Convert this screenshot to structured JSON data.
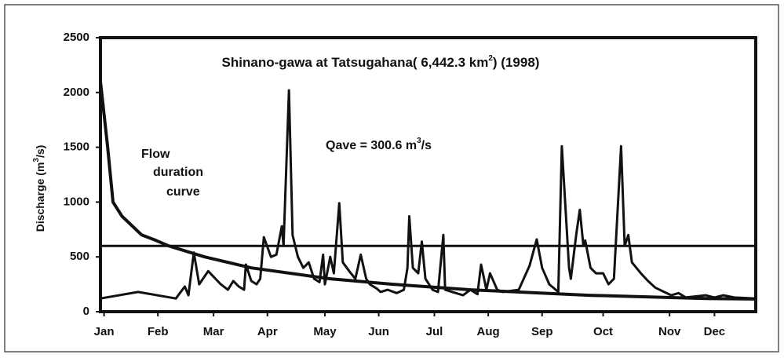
{
  "chart_data": {
    "type": "line",
    "title_parts": [
      "Shinano-gawa at Tatsugahana( 6,442.3 km",
      "2",
      ") (1998)"
    ],
    "ylabel_parts": [
      "Discharge (m",
      "3",
      "/s)"
    ],
    "annotations": {
      "qave": [
        "Qave = 300.6 m",
        "3",
        "/s"
      ],
      "duration": [
        "Flow",
        "duration",
        "curve"
      ]
    },
    "xlim": [
      0,
      365
    ],
    "ylim": [
      0,
      2500
    ],
    "yticks": [
      0,
      500,
      1000,
      1500,
      2000,
      2500
    ],
    "xticks": [
      {
        "value": 2,
        "label": "Jan"
      },
      {
        "value": 32,
        "label": "Feb"
      },
      {
        "value": 63,
        "label": "Mar"
      },
      {
        "value": 93,
        "label": "Apr"
      },
      {
        "value": 125,
        "label": "May"
      },
      {
        "value": 155,
        "label": "Jun"
      },
      {
        "value": 186,
        "label": "Jul"
      },
      {
        "value": 216,
        "label": "Aug"
      },
      {
        "value": 246,
        "label": "Sep"
      },
      {
        "value": 280,
        "label": "Oct"
      },
      {
        "value": 317,
        "label": "Nov"
      },
      {
        "value": 342,
        "label": "Dec"
      }
    ],
    "hlines": [
      600
    ],
    "grid": false,
    "series": [
      {
        "color": "#111111",
        "x": [
          0,
          21,
          42,
          47,
          49,
          52,
          55,
          60,
          67,
          71,
          74,
          77,
          80,
          81,
          84,
          87,
          89,
          91,
          95,
          98,
          101,
          102,
          105,
          107,
          110,
          113,
          116,
          119,
          122,
          124,
          125,
          128,
          130,
          133,
          135,
          139,
          142,
          145,
          148,
          150,
          154,
          156,
          160,
          165,
          169,
          171,
          172,
          174,
          177,
          179,
          181,
          185,
          188,
          191,
          192,
          196,
          202,
          206,
          210,
          212,
          215,
          217,
          221,
          224,
          233,
          239,
          243,
          246,
          250,
          255,
          257,
          261,
          262,
          265,
          267,
          269,
          270,
          273,
          276,
          280,
          283,
          286,
          290,
          292,
          294,
          296,
          301,
          305,
          309,
          314,
          318,
          322,
          326,
          337,
          342,
          347,
          353,
          365
        ],
        "values": [
          120,
          180,
          120,
          230,
          150,
          540,
          250,
          370,
          250,
          200,
          280,
          230,
          200,
          430,
          280,
          250,
          300,
          680,
          500,
          520,
          780,
          600,
          2020,
          700,
          500,
          400,
          450,
          300,
          270,
          520,
          250,
          500,
          350,
          990,
          450,
          360,
          300,
          520,
          300,
          250,
          210,
          180,
          200,
          170,
          200,
          400,
          870,
          400,
          350,
          640,
          300,
          200,
          180,
          700,
          200,
          180,
          150,
          200,
          160,
          430,
          200,
          350,
          200,
          180,
          200,
          420,
          660,
          400,
          250,
          180,
          1510,
          400,
          300,
          700,
          930,
          600,
          650,
          400,
          350,
          350,
          250,
          300,
          1510,
          600,
          700,
          450,
          350,
          280,
          220,
          180,
          150,
          170,
          130,
          150,
          130,
          150,
          130,
          120
        ]
      },
      {
        "color": "#111111",
        "x": [
          0,
          4,
          7,
          12,
          23,
          31,
          38,
          58,
          84,
          128,
          163,
          206,
          272,
          337,
          365
        ],
        "values": [
          2100,
          1500,
          1000,
          870,
          700,
          650,
          600,
          500,
          400,
          300,
          250,
          200,
          150,
          120,
          115
        ]
      }
    ]
  }
}
